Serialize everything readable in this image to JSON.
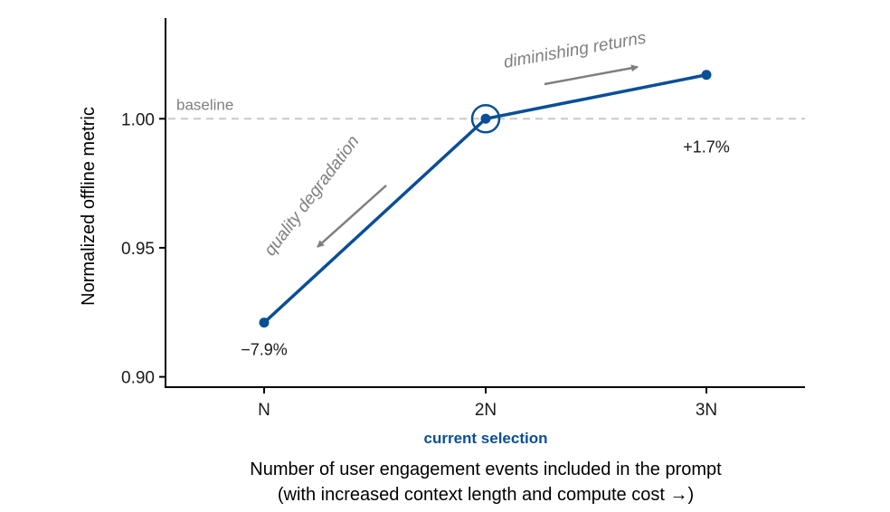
{
  "chart_data": {
    "type": "line",
    "categories": [
      "N",
      "2N",
      "3N"
    ],
    "series": [
      {
        "values": [
          0.921,
          1.0,
          1.017
        ]
      }
    ],
    "data_labels": [
      "−7.9%",
      "",
      "+1.7%"
    ],
    "ylabel": "Normalized offline metric",
    "xlabel_line1": "Number of user engagement events included in the prompt",
    "xlabel_line2": "(with increased context length and compute cost →)",
    "yticks": [
      0.9,
      0.95,
      1.0
    ],
    "ytick_labels": [
      "0.90",
      "0.95",
      "1.00"
    ],
    "ylim": [
      0.896,
      1.039
    ],
    "baseline": {
      "value": 1.0,
      "label": "baseline"
    },
    "highlight": {
      "category": "2N",
      "label": "current selection"
    },
    "annotations": {
      "degradation": "quality degradation",
      "returns": "diminishing returns"
    },
    "grid": false,
    "colors": {
      "line": "#0a4f96",
      "annotation": "#7f7f7f",
      "baseline": "#c8c8c8"
    }
  }
}
